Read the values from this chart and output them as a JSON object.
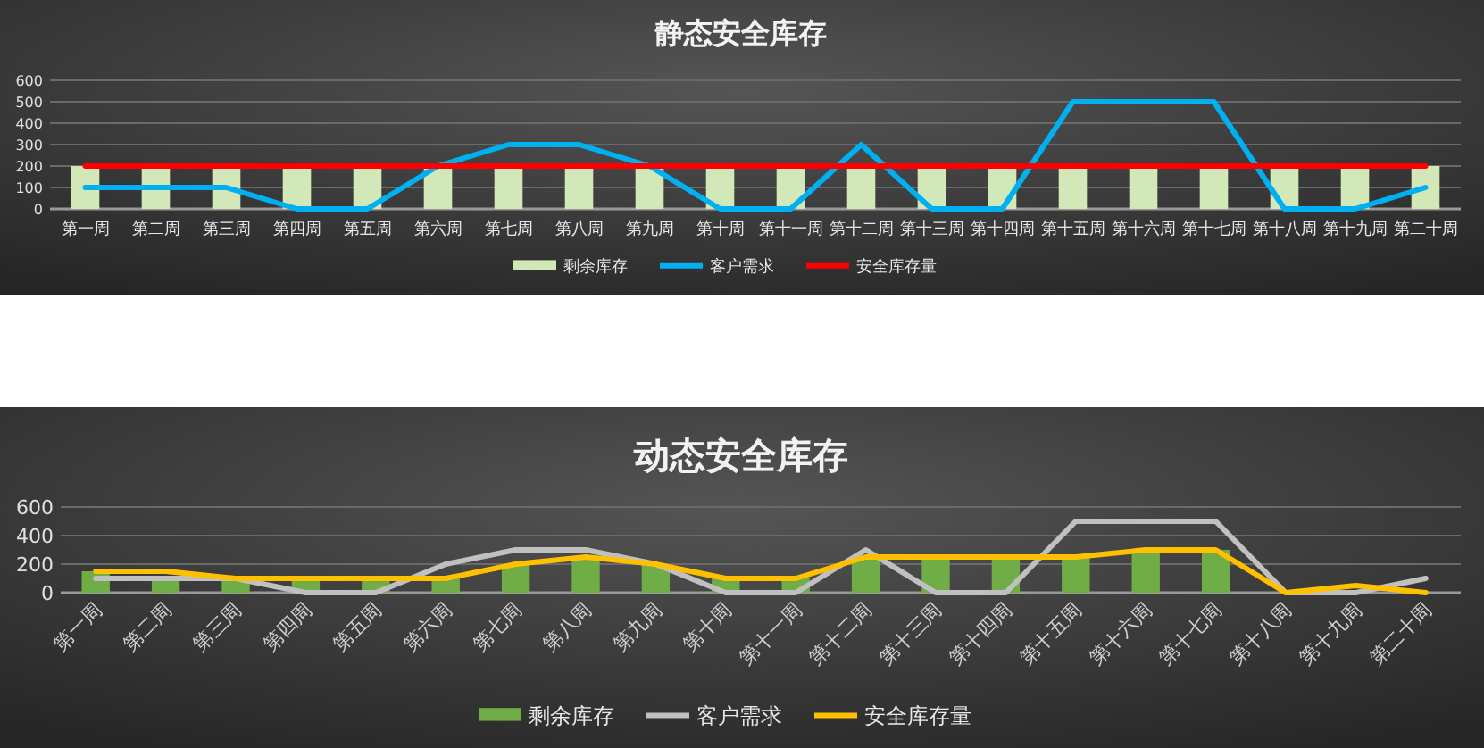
{
  "chart_data": [
    {
      "type": "bar",
      "title": "静态安全库存",
      "categories": [
        "第一周",
        "第二周",
        "第三周",
        "第四周",
        "第五周",
        "第六周",
        "第七周",
        "第八周",
        "第九周",
        "第十周",
        "第十一周",
        "第十二周",
        "第十三周",
        "第十四周",
        "第十五周",
        "第十六周",
        "第十七周",
        "第十八周",
        "第十九周",
        "第二十周"
      ],
      "ylim": [
        0,
        600
      ],
      "yticks": [
        0,
        100,
        200,
        300,
        400,
        500,
        600
      ],
      "grid": "y",
      "legend": "bottom",
      "marker": "none",
      "series": [
        {
          "name": "剩余库存",
          "color": "#d3e8b8",
          "values": [
            200,
            200,
            200,
            200,
            200,
            200,
            200,
            200,
            200,
            200,
            200,
            200,
            200,
            200,
            200,
            200,
            200,
            200,
            200,
            200
          ]
        },
        {
          "name": "客户需求",
          "type": "line",
          "color": "#00b0f0",
          "values": [
            100,
            100,
            100,
            0,
            0,
            200,
            300,
            300,
            200,
            0,
            0,
            300,
            0,
            0,
            500,
            500,
            500,
            0,
            0,
            100
          ]
        },
        {
          "name": "安全库存量",
          "type": "line",
          "color": "#ff0000",
          "values": [
            200,
            200,
            200,
            200,
            200,
            200,
            200,
            200,
            200,
            200,
            200,
            200,
            200,
            200,
            200,
            200,
            200,
            200,
            200,
            200
          ]
        }
      ]
    },
    {
      "type": "bar",
      "title": "动态安全库存",
      "categories": [
        "第一周",
        "第二周",
        "第三周",
        "第四周",
        "第五周",
        "第六周",
        "第七周",
        "第八周",
        "第九周",
        "第十周",
        "第十一周",
        "第十二周",
        "第十三周",
        "第十四周",
        "第十五周",
        "第十六周",
        "第十七周",
        "第十八周",
        "第十九周",
        "第二十周"
      ],
      "ylim": [
        0,
        600
      ],
      "yticks": [
        0,
        200,
        400,
        600
      ],
      "grid": "y",
      "legend": "bottom",
      "marker": "none",
      "series": [
        {
          "name": "剩余库存",
          "color": "#70ad47",
          "values": [
            150,
            100,
            100,
            100,
            100,
            100,
            200,
            250,
            200,
            100,
            100,
            250,
            250,
            250,
            250,
            300,
            300,
            0,
            null,
            0
          ]
        },
        {
          "name": "客户需求",
          "type": "line",
          "color": "#c0c0c0",
          "values": [
            100,
            100,
            100,
            0,
            0,
            200,
            300,
            300,
            200,
            0,
            0,
            300,
            0,
            0,
            500,
            500,
            500,
            0,
            0,
            100
          ]
        },
        {
          "name": "安全库存量",
          "type": "line",
          "color": "#ffc000",
          "values": [
            150,
            150,
            100,
            100,
            100,
            100,
            200,
            250,
            200,
            100,
            100,
            250,
            250,
            250,
            250,
            300,
            300,
            0,
            50,
            0
          ]
        }
      ]
    }
  ]
}
